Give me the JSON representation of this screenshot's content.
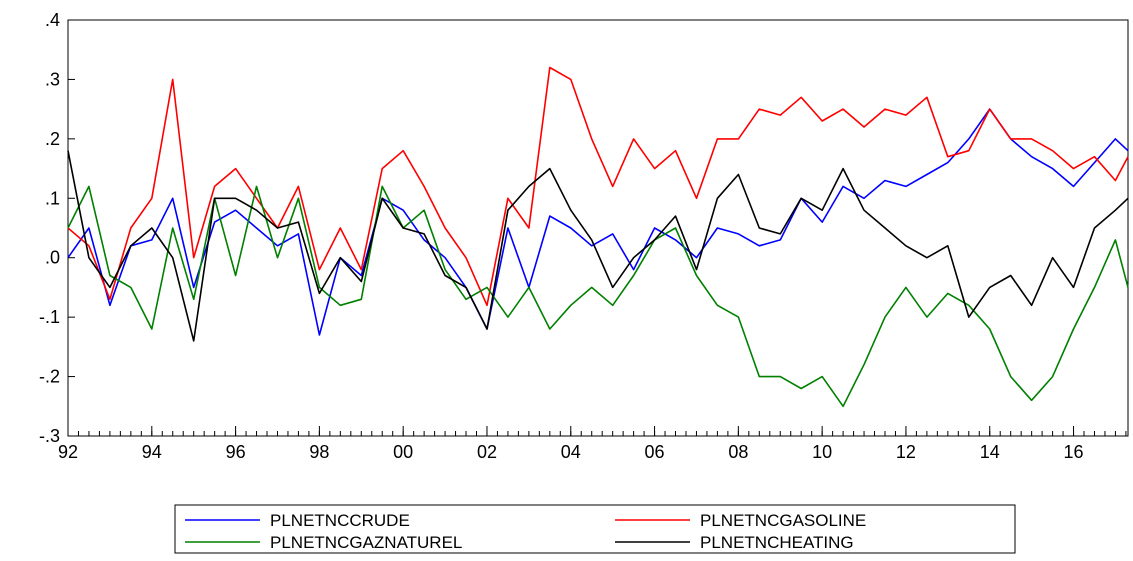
{
  "chart_data": {
    "type": "line",
    "title": "",
    "xlabel": "",
    "ylabel": "",
    "xlim": [
      1992.0,
      2017.3
    ],
    "ylim": [
      -0.3,
      0.4
    ],
    "x_tick_values": [
      1992,
      1994,
      1996,
      1998,
      2000,
      2002,
      2004,
      2006,
      2008,
      2010,
      2012,
      2014,
      2016
    ],
    "x_tick_labels": [
      "92",
      "94",
      "96",
      "98",
      "00",
      "02",
      "04",
      "06",
      "08",
      "10",
      "12",
      "14",
      "16"
    ],
    "y_tick_values": [
      -0.3,
      -0.2,
      -0.1,
      0.0,
      0.1,
      0.2,
      0.3,
      0.4
    ],
    "y_tick_labels": [
      "-.3",
      "-.2",
      "-.1",
      ".0",
      ".1",
      ".2",
      ".3",
      ".4"
    ],
    "grid": false,
    "legend_position": "bottom-center",
    "series": [
      {
        "name": "PLNETNCCRUDE",
        "color": "#0000ff",
        "x": [
          1992.0,
          1992.5,
          1993.0,
          1993.5,
          1994.0,
          1994.5,
          1995.0,
          1995.5,
          1996.0,
          1996.5,
          1997.0,
          1997.5,
          1998.0,
          1998.5,
          1999.0,
          1999.5,
          2000.0,
          2000.5,
          2001.0,
          2001.5,
          2002.0,
          2002.5,
          2003.0,
          2003.5,
          2004.0,
          2004.5,
          2005.0,
          2005.5,
          2006.0,
          2006.5,
          2007.0,
          2007.5,
          2008.0,
          2008.5,
          2009.0,
          2009.5,
          2010.0,
          2010.5,
          2011.0,
          2011.5,
          2012.0,
          2012.5,
          2013.0,
          2013.5,
          2014.0,
          2014.5,
          2015.0,
          2015.5,
          2016.0,
          2016.5,
          2017.0,
          2017.3
        ],
        "y": [
          0.0,
          0.05,
          -0.08,
          0.02,
          0.03,
          0.1,
          -0.05,
          0.06,
          0.08,
          0.05,
          0.02,
          0.04,
          -0.13,
          0.0,
          -0.03,
          0.1,
          0.08,
          0.03,
          0.0,
          -0.05,
          -0.12,
          0.05,
          -0.05,
          0.07,
          0.05,
          0.02,
          0.04,
          -0.02,
          0.05,
          0.03,
          0.0,
          0.05,
          0.04,
          0.02,
          0.03,
          0.1,
          0.06,
          0.12,
          0.1,
          0.13,
          0.12,
          0.14,
          0.16,
          0.2,
          0.25,
          0.2,
          0.17,
          0.15,
          0.12,
          0.16,
          0.2,
          0.18
        ]
      },
      {
        "name": "PLNETNCGASOLINE",
        "color": "#ff0000",
        "x": [
          1992.0,
          1992.5,
          1993.0,
          1993.5,
          1994.0,
          1994.5,
          1995.0,
          1995.5,
          1996.0,
          1996.5,
          1997.0,
          1997.5,
          1998.0,
          1998.5,
          1999.0,
          1999.5,
          2000.0,
          2000.5,
          2001.0,
          2001.5,
          2002.0,
          2002.5,
          2003.0,
          2003.5,
          2004.0,
          2004.5,
          2005.0,
          2005.5,
          2006.0,
          2006.5,
          2007.0,
          2007.5,
          2008.0,
          2008.5,
          2009.0,
          2009.5,
          2010.0,
          2010.5,
          2011.0,
          2011.5,
          2012.0,
          2012.5,
          2013.0,
          2013.5,
          2014.0,
          2014.5,
          2015.0,
          2015.5,
          2016.0,
          2016.5,
          2017.0,
          2017.3
        ],
        "y": [
          0.05,
          0.02,
          -0.07,
          0.05,
          0.1,
          0.3,
          0.0,
          0.12,
          0.15,
          0.1,
          0.05,
          0.12,
          -0.02,
          0.05,
          -0.02,
          0.15,
          0.18,
          0.12,
          0.05,
          0.0,
          -0.08,
          0.1,
          0.05,
          0.32,
          0.3,
          0.2,
          0.12,
          0.2,
          0.15,
          0.18,
          0.1,
          0.2,
          0.2,
          0.25,
          0.24,
          0.27,
          0.23,
          0.25,
          0.22,
          0.25,
          0.24,
          0.27,
          0.17,
          0.18,
          0.25,
          0.2,
          0.2,
          0.18,
          0.15,
          0.17,
          0.13,
          0.17
        ]
      },
      {
        "name": "PLNETNCGAZNATUREL",
        "color": "#008000",
        "x": [
          1992.0,
          1992.5,
          1993.0,
          1993.5,
          1994.0,
          1994.5,
          1995.0,
          1995.5,
          1996.0,
          1996.5,
          1997.0,
          1997.5,
          1998.0,
          1998.5,
          1999.0,
          1999.5,
          2000.0,
          2000.5,
          2001.0,
          2001.5,
          2002.0,
          2002.5,
          2003.0,
          2003.5,
          2004.0,
          2004.5,
          2005.0,
          2005.5,
          2006.0,
          2006.5,
          2007.0,
          2007.5,
          2008.0,
          2008.5,
          2009.0,
          2009.5,
          2010.0,
          2010.5,
          2011.0,
          2011.5,
          2012.0,
          2012.5,
          2013.0,
          2013.5,
          2014.0,
          2014.5,
          2015.0,
          2015.5,
          2016.0,
          2016.5,
          2017.0,
          2017.3
        ],
        "y": [
          0.05,
          0.12,
          -0.03,
          -0.05,
          -0.12,
          0.05,
          -0.07,
          0.1,
          -0.03,
          0.12,
          0.0,
          0.1,
          -0.05,
          -0.08,
          -0.07,
          0.12,
          0.05,
          0.08,
          -0.02,
          -0.07,
          -0.05,
          -0.1,
          -0.05,
          -0.12,
          -0.08,
          -0.05,
          -0.08,
          -0.03,
          0.03,
          0.05,
          -0.03,
          -0.08,
          -0.1,
          -0.2,
          -0.2,
          -0.22,
          -0.2,
          -0.25,
          -0.18,
          -0.1,
          -0.05,
          -0.1,
          -0.06,
          -0.08,
          -0.12,
          -0.2,
          -0.24,
          -0.2,
          -0.12,
          -0.05,
          0.03,
          -0.05
        ]
      },
      {
        "name": "PLNETNCHEATING",
        "color": "#000000",
        "x": [
          1992.0,
          1992.5,
          1993.0,
          1993.5,
          1994.0,
          1994.5,
          1995.0,
          1995.5,
          1996.0,
          1996.5,
          1997.0,
          1997.5,
          1998.0,
          1998.5,
          1999.0,
          1999.5,
          2000.0,
          2000.5,
          2001.0,
          2001.5,
          2002.0,
          2002.5,
          2003.0,
          2003.5,
          2004.0,
          2004.5,
          2005.0,
          2005.5,
          2006.0,
          2006.5,
          2007.0,
          2007.5,
          2008.0,
          2008.5,
          2009.0,
          2009.5,
          2010.0,
          2010.5,
          2011.0,
          2011.5,
          2012.0,
          2012.5,
          2013.0,
          2013.5,
          2014.0,
          2014.5,
          2015.0,
          2015.5,
          2016.0,
          2016.5,
          2017.0,
          2017.3
        ],
        "y": [
          0.18,
          0.0,
          -0.05,
          0.02,
          0.05,
          0.0,
          -0.14,
          0.1,
          0.1,
          0.08,
          0.05,
          0.06,
          -0.06,
          0.0,
          -0.04,
          0.1,
          0.05,
          0.04,
          -0.03,
          -0.05,
          -0.12,
          0.08,
          0.12,
          0.15,
          0.08,
          0.03,
          -0.05,
          0.0,
          0.03,
          0.07,
          -0.02,
          0.1,
          0.14,
          0.05,
          0.04,
          0.1,
          0.08,
          0.15,
          0.08,
          0.05,
          0.02,
          0.0,
          0.02,
          -0.1,
          -0.05,
          -0.03,
          -0.08,
          0.0,
          -0.05,
          0.05,
          0.08,
          0.1
        ]
      }
    ]
  }
}
